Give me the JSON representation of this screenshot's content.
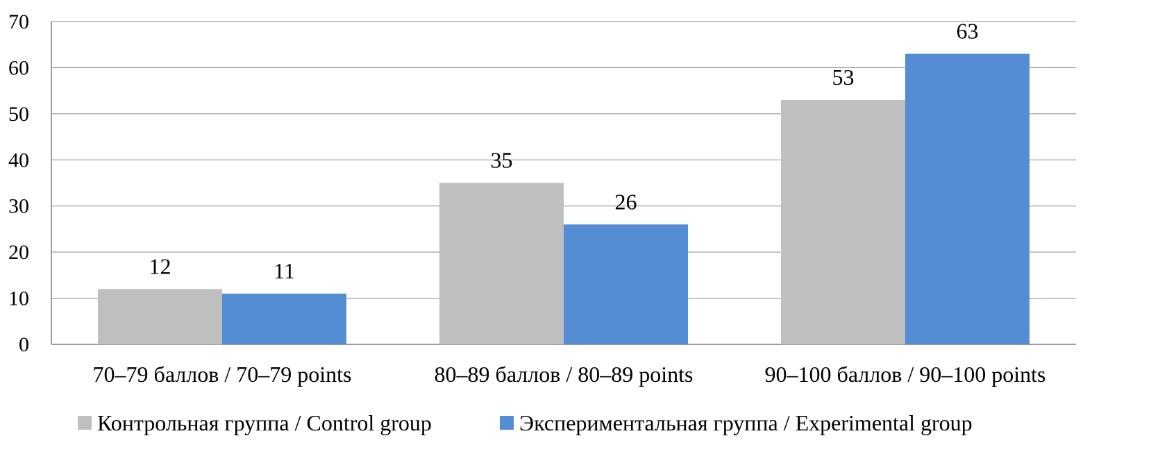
{
  "chart_data": {
    "type": "bar",
    "title": "",
    "xlabel": "",
    "ylabel": "",
    "categories": [
      "70–79 баллов / 70–79 points",
      "80–89 баллов / 80–89 points",
      "90–100 баллов / 90–100 points"
    ],
    "series": [
      {
        "name": "Контрольная группа / Control group",
        "values": [
          12,
          35,
          53
        ],
        "color": "#bfbfbf"
      },
      {
        "name": "Экспериментальная группа / Experimental group",
        "values": [
          11,
          26,
          63
        ],
        "color": "#548dd4"
      }
    ],
    "ylim": [
      0,
      70
    ],
    "yticks": [
      0,
      10,
      20,
      30,
      40,
      50,
      60,
      70
    ],
    "grid": true,
    "data_labels": true,
    "legend_position": "bottom"
  }
}
